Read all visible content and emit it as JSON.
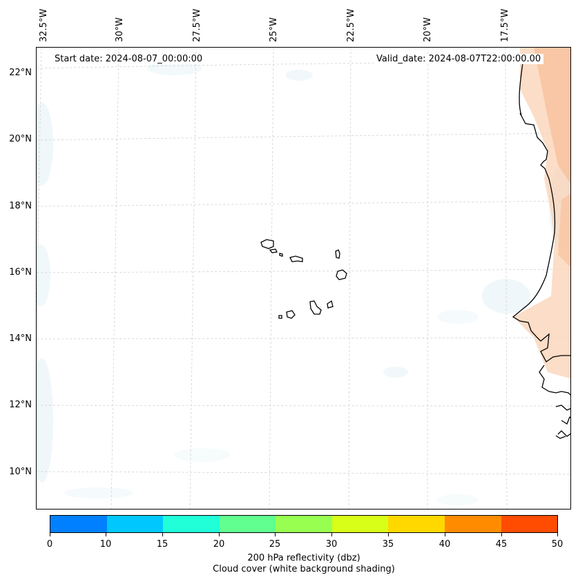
{
  "map": {
    "start_date": "Start date: 2024-08-07_00:00:00",
    "valid_date": "Valid_date: 2024-08-07T22:00:00.00",
    "lon_labels": [
      "32.5°W",
      "30°W",
      "27.5°W",
      "25°W",
      "22.5°W",
      "20°W",
      "17.5°W"
    ],
    "lat_labels": [
      "22°N",
      "20°N",
      "18°N",
      "16°N",
      "14°N",
      "12°N",
      "10°N"
    ]
  },
  "colorbar": {
    "ticks": [
      "0",
      "10",
      "15",
      "20",
      "25",
      "30",
      "35",
      "40",
      "45",
      "50"
    ],
    "colors": [
      "#0080ff",
      "#00c8ff",
      "#20ffd8",
      "#60ff90",
      "#98ff50",
      "#d8ff18",
      "#ffd800",
      "#ff8c00",
      "#ff4c00"
    ],
    "label": "200 hPa reflectivity (dbz)",
    "sublabel": "Cloud cover (white background shading)"
  }
}
